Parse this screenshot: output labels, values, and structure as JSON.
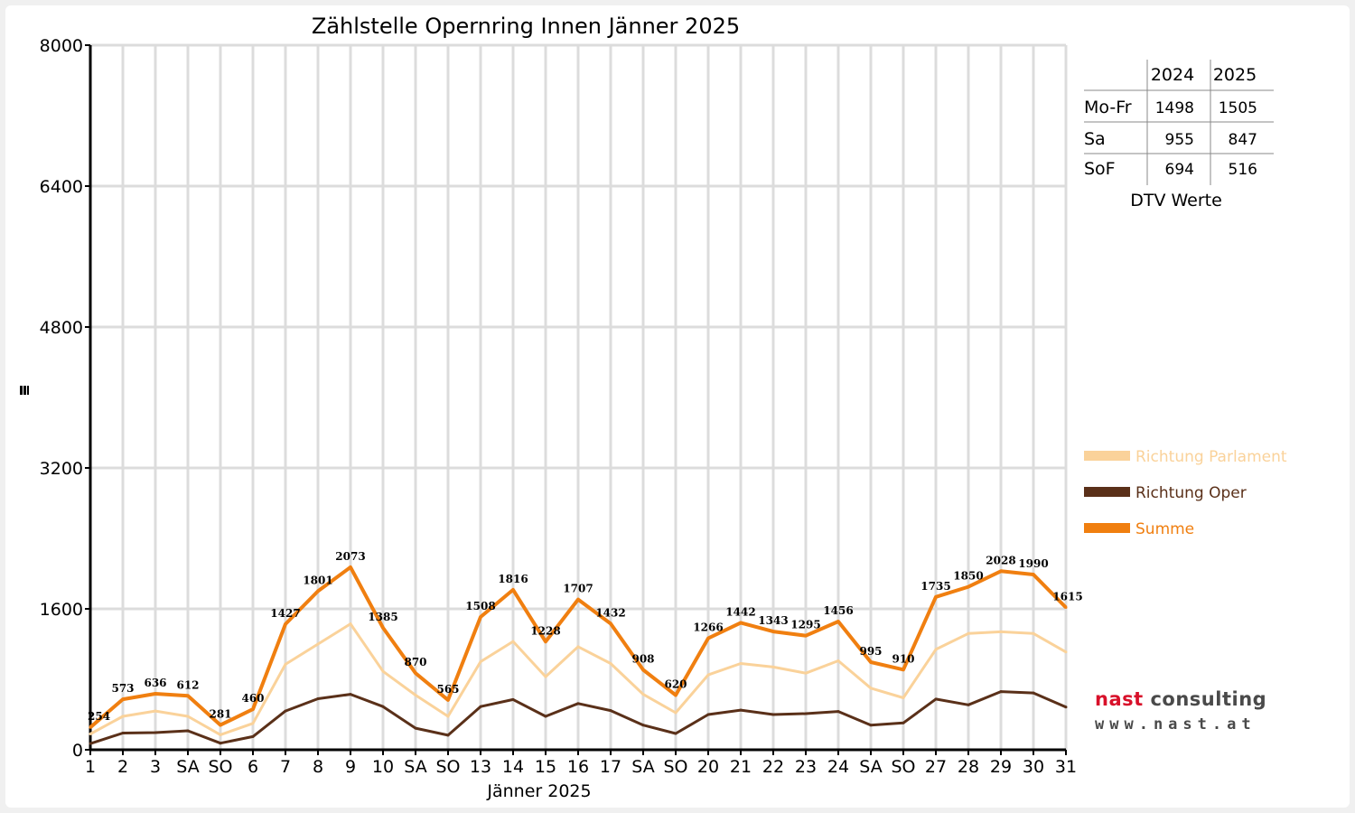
{
  "chart_data": {
    "type": "line",
    "title": "Zählstelle Opernring Innen Jänner 2025",
    "xlabel": "Jänner 2025",
    "ylabel": "",
    "ylim": [
      0,
      8000
    ],
    "yticks": [
      "0",
      "1600",
      "3200",
      "4800",
      "6400",
      "8000"
    ],
    "categories": [
      "1",
      "2",
      "3",
      "SA",
      "SO",
      "6",
      "7",
      "8",
      "9",
      "10",
      "SA",
      "SO",
      "13",
      "14",
      "15",
      "16",
      "17",
      "SA",
      "SO",
      "20",
      "21",
      "22",
      "23",
      "24",
      "SA",
      "SO",
      "27",
      "28",
      "29",
      "30",
      "31"
    ],
    "red_categories": [
      0,
      4,
      5,
      11,
      18,
      25
    ],
    "grid": true,
    "legend_position": "right",
    "series": [
      {
        "name": "Richtung Parlament",
        "color": "#fad29a",
        "values": [
          180,
          380,
          440,
          380,
          170,
          300,
          970,
          1200,
          1430,
          890,
          620,
          380,
          1000,
          1230,
          830,
          1170,
          980,
          630,
          420,
          850,
          980,
          940,
          870,
          1010,
          700,
          590,
          1140,
          1320,
          1340,
          1320,
          1110
        ]
      },
      {
        "name": "Richtung Oper",
        "color": "#5a3019",
        "values": [
          70,
          190,
          195,
          215,
          75,
          150,
          440,
          580,
          630,
          490,
          245,
          165,
          490,
          570,
          380,
          525,
          445,
          280,
          185,
          400,
          450,
          400,
          410,
          435,
          280,
          305,
          575,
          510,
          660,
          645,
          485
        ]
      },
      {
        "name": "Summe",
        "color": "#f07f10",
        "values": [
          254,
          573,
          636,
          612,
          281,
          460,
          1427,
          1801,
          2073,
          1385,
          870,
          565,
          1508,
          1816,
          1228,
          1707,
          1432,
          908,
          620,
          1266,
          1442,
          1343,
          1295,
          1456,
          995,
          910,
          1735,
          1850,
          2028,
          1990,
          1615
        ]
      }
    ],
    "data_labels": [
      "254",
      "573",
      "636",
      "612",
      "281",
      "460",
      "1427",
      "1801",
      "2073",
      "1385",
      "870",
      "565",
      "1508",
      "1816",
      "1228",
      "1707",
      "1432",
      "908",
      "620",
      "1266",
      "1442",
      "1343",
      "1295",
      "1456",
      "995",
      "910",
      "1735",
      "1850",
      "2028",
      "1990",
      "1615"
    ],
    "colors": {
      "red_tick": "#ee0000",
      "grid": "#dcdcdc",
      "background": "#f0f0f0"
    }
  },
  "dtv_table": {
    "headers": [
      "2024",
      "2025"
    ],
    "rows": [
      {
        "label": "Mo-Fr",
        "v2024": "1498",
        "v2025": "1505"
      },
      {
        "label": "Sa",
        "v2024": "955",
        "v2025": "847"
      },
      {
        "label": "SoF",
        "v2024": "694",
        "v2025": "516"
      }
    ],
    "caption": "DTV Werte"
  },
  "logo": {
    "line1_a": "nast",
    "line1_b": "consulting",
    "line2": "www.nast.at"
  }
}
